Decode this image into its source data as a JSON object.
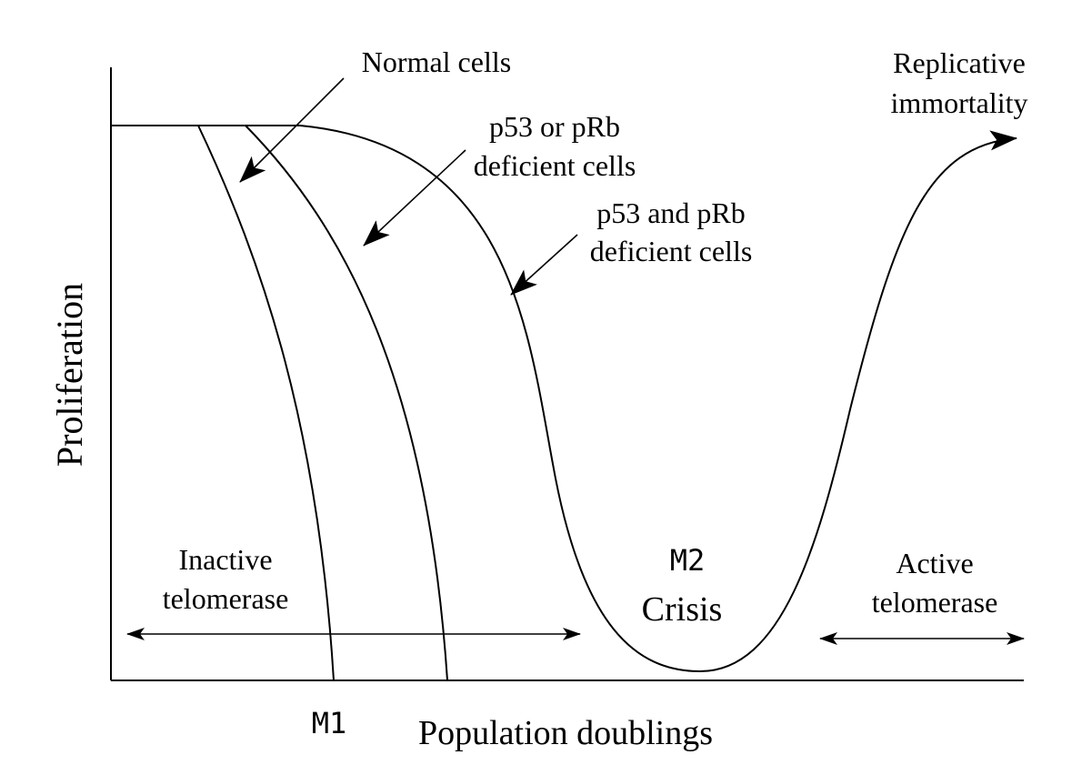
{
  "diagram": {
    "axes": {
      "ylabel": "Proliferation",
      "xlabel": "Population doublings"
    },
    "curves": {
      "normal": "Normal cells",
      "p53_or_prb_line1": "p53 or pRb",
      "p53_or_prb_line2": "deficient cells",
      "p53_and_prb_line1": "p53 and pRb",
      "p53_and_prb_line2": "deficient cells"
    },
    "markers": {
      "m1": "M1",
      "m2": "M2",
      "crisis": "Crisis"
    },
    "regions": {
      "inactive_line1": "Inactive",
      "inactive_line2": "telomerase",
      "active_line1": "Active",
      "active_line2": "telomerase"
    },
    "outcome": {
      "line1": "Replicative",
      "line2": "immortality"
    }
  }
}
